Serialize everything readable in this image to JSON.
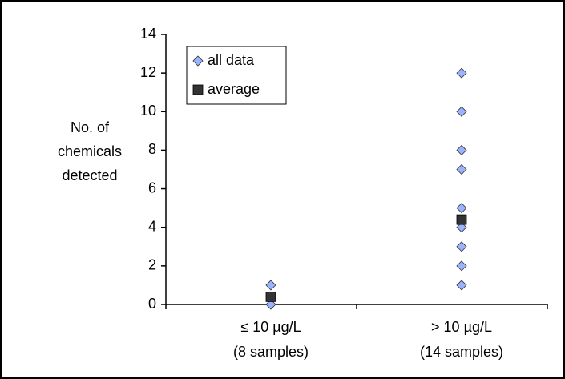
{
  "chart_data": {
    "type": "scatter",
    "ylabel": [
      "No. of",
      "chemicals",
      "detected"
    ],
    "categories": [
      [
        "≤ 10 µg/L",
        "(8 samples)"
      ],
      [
        "> 10 µg/L",
        "(14 samples)"
      ]
    ],
    "series": [
      {
        "name": "all data",
        "color": "#99b3ff",
        "marker": "diamond",
        "values": [
          [
            0,
            1
          ],
          [
            1,
            2,
            3,
            4,
            5,
            7,
            8,
            10,
            12
          ]
        ]
      },
      {
        "name": "average",
        "color": "#333333",
        "marker": "square",
        "values": [
          0.4,
          4.4
        ]
      }
    ],
    "ylim": [
      0,
      14
    ],
    "yticks": [
      0,
      2,
      4,
      6,
      8,
      10,
      12,
      14
    ],
    "legend": "upper left"
  }
}
